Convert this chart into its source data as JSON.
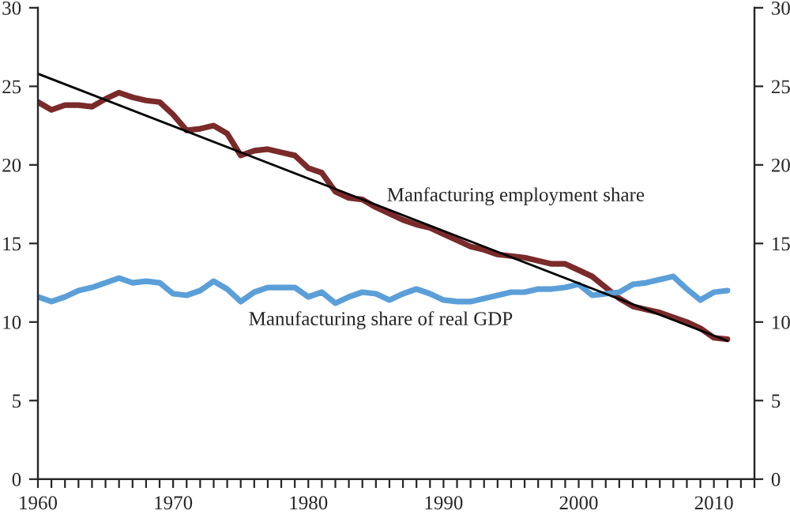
{
  "chart_data": {
    "type": "line",
    "x": [
      1960,
      1961,
      1962,
      1963,
      1964,
      1965,
      1966,
      1967,
      1968,
      1969,
      1970,
      1971,
      1972,
      1973,
      1974,
      1975,
      1976,
      1977,
      1978,
      1979,
      1980,
      1981,
      1982,
      1983,
      1984,
      1985,
      1986,
      1987,
      1988,
      1989,
      1990,
      1991,
      1992,
      1993,
      1994,
      1995,
      1996,
      1997,
      1998,
      1999,
      2000,
      2001,
      2002,
      2003,
      2004,
      2005,
      2006,
      2007,
      2008,
      2009,
      2010,
      2011
    ],
    "series": [
      {
        "color": "#7b2a2a",
        "values": [
          24.0,
          23.5,
          23.8,
          23.8,
          23.7,
          24.2,
          24.6,
          24.3,
          24.1,
          24.0,
          23.2,
          22.2,
          22.3,
          22.5,
          22.0,
          20.6,
          20.9,
          21.0,
          20.8,
          20.6,
          19.8,
          19.5,
          18.3,
          17.9,
          17.8,
          17.3,
          16.9,
          16.5,
          16.2,
          16.0,
          15.6,
          15.2,
          14.8,
          14.6,
          14.3,
          14.2,
          14.1,
          13.9,
          13.7,
          13.7,
          13.3,
          12.9,
          12.2,
          11.5,
          11.0,
          10.8,
          10.6,
          10.3,
          10.0,
          9.6,
          9.0,
          8.9
        ]
      },
      {
        "color": "#5b9fd9",
        "values": [
          11.6,
          11.3,
          11.6,
          12.0,
          12.2,
          12.5,
          12.8,
          12.5,
          12.6,
          12.5,
          11.8,
          11.7,
          12.0,
          12.6,
          12.1,
          11.3,
          11.9,
          12.2,
          12.2,
          12.2,
          11.6,
          11.9,
          11.2,
          11.6,
          11.9,
          11.8,
          11.4,
          11.8,
          12.1,
          11.8,
          11.4,
          11.3,
          11.3,
          11.5,
          11.7,
          11.9,
          11.9,
          12.1,
          12.1,
          12.2,
          12.4,
          11.7,
          11.8,
          11.9,
          12.4,
          12.5,
          12.7,
          12.9,
          12.1,
          11.4,
          11.9,
          12.0
        ]
      },
      {
        "type": "line",
        "color": "#000000",
        "x": [
          1960,
          2011
        ],
        "values": [
          25.8,
          8.8
        ]
      }
    ],
    "annotations": [
      "Manfacturing employment share",
      "Manufacturing share of real GDP"
    ],
    "xlim": [
      1960,
      2013
    ],
    "xticks": [
      1960,
      {
        "value": 1961,
        "label": null
      },
      {
        "value": 1962,
        "label": null
      },
      {
        "value": 1963,
        "label": null
      },
      {
        "value": 1964,
        "label": null
      },
      {
        "value": 1965,
        "label": null
      },
      {
        "value": 1966,
        "label": null
      },
      {
        "value": 1967,
        "label": null
      },
      {
        "value": 1968,
        "label": null
      },
      {
        "value": 1969,
        "label": null
      },
      1970,
      {
        "value": 1971,
        "label": null
      },
      {
        "value": 1972,
        "label": null
      },
      {
        "value": 1973,
        "label": null
      },
      {
        "value": 1974,
        "label": null
      },
      {
        "value": 1975,
        "label": null
      },
      {
        "value": 1976,
        "label": null
      },
      {
        "value": 1977,
        "label": null
      },
      {
        "value": 1978,
        "label": null
      },
      {
        "value": 1979,
        "label": null
      },
      1980,
      {
        "value": 1981,
        "label": null
      },
      {
        "value": 1982,
        "label": null
      },
      {
        "value": 1983,
        "label": null
      },
      {
        "value": 1984,
        "label": null
      },
      {
        "value": 1985,
        "label": null
      },
      {
        "value": 1986,
        "label": null
      },
      {
        "value": 1987,
        "label": null
      },
      {
        "value": 1988,
        "label": null
      },
      {
        "value": 1989,
        "label": null
      },
      1990,
      {
        "value": 1991,
        "label": null
      },
      {
        "value": 1992,
        "label": null
      },
      {
        "value": 1993,
        "label": null
      },
      {
        "value": 1994,
        "label": null
      },
      {
        "value": 1995,
        "label": null
      },
      {
        "value": 1996,
        "label": null
      },
      {
        "value": 1997,
        "label": null
      },
      {
        "value": 1998,
        "label": null
      },
      {
        "value": 1999,
        "label": null
      },
      2000,
      {
        "value": 2001,
        "label": null
      },
      {
        "value": 2002,
        "label": null
      },
      {
        "value": 2003,
        "label": null
      },
      {
        "value": 2004,
        "label": null
      },
      {
        "value": 2005,
        "label": null
      },
      {
        "value": 2006,
        "label": null
      },
      {
        "value": 2007,
        "label": null
      },
      {
        "value": 2008,
        "label": null
      },
      {
        "value": 2009,
        "label": null
      },
      2010,
      {
        "value": 2011,
        "label": null
      },
      {
        "value": 2012,
        "label": null
      },
      {
        "value": 2013,
        "label": null
      }
    ],
    "ylim": [
      0,
      30
    ],
    "yticks": [
      0,
      5,
      10,
      15,
      20,
      25,
      30
    ],
    "y2lim": [
      0,
      30
    ],
    "y2ticks": [
      0,
      5,
      10,
      15,
      20,
      25,
      30
    ],
    "grid": false,
    "legend": false
  }
}
